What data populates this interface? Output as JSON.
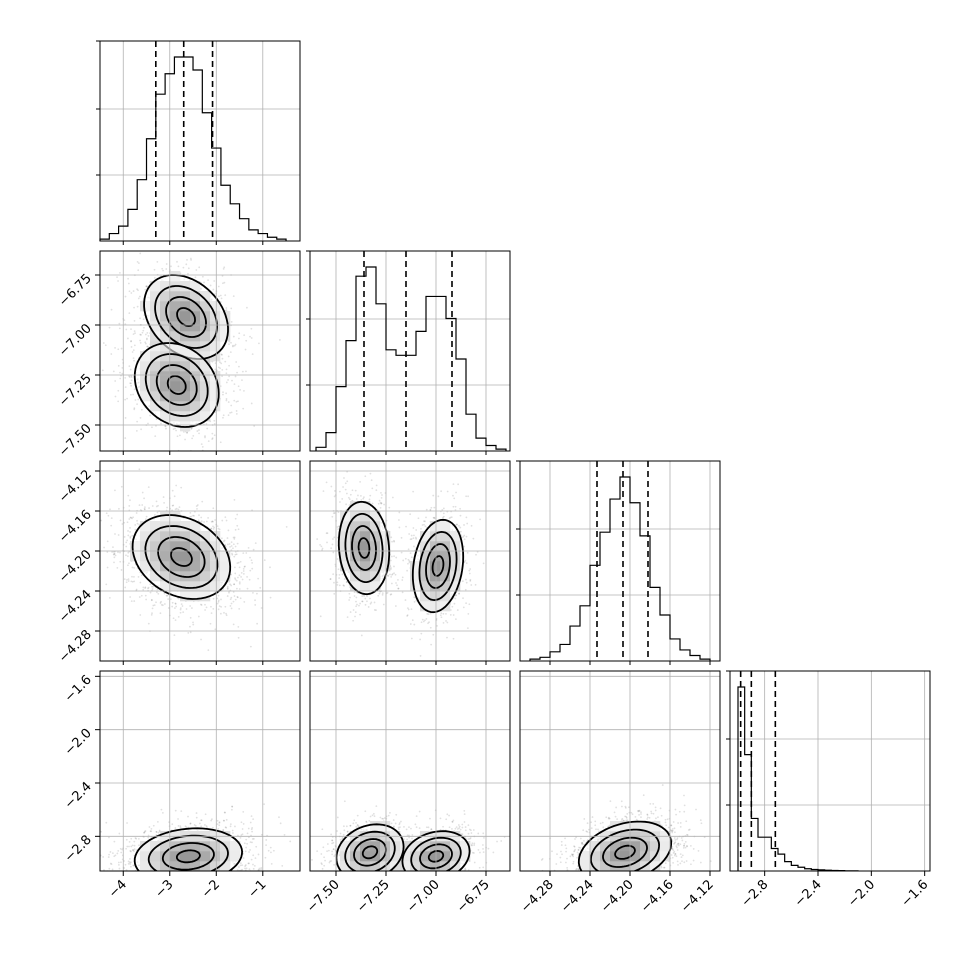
{
  "chart_data": {
    "type": "corner",
    "grid": true,
    "parameters": [
      {
        "range": [
          -4.5,
          -0.2
        ],
        "ticks": [
          -4,
          -3,
          -2,
          -1
        ],
        "tick_labels": [
          "−4",
          "−3",
          "−2",
          "−1"
        ]
      },
      {
        "range": [
          -7.63,
          -6.63
        ],
        "ticks": [
          -7.5,
          -7.25,
          -7.0,
          -6.75
        ],
        "tick_labels": [
          "−7.50",
          "−7.25",
          "−7.00",
          "−6.75"
        ]
      },
      {
        "range": [
          -4.31,
          -4.11
        ],
        "ticks": [
          -4.28,
          -4.24,
          -4.2,
          -4.16,
          -4.12
        ],
        "tick_labels": [
          "−4.28",
          "−4.24",
          "−4.20",
          "−4.16",
          "−4.12"
        ]
      },
      {
        "range": [
          -3.06,
          -1.56
        ],
        "ticks": [
          -2.8,
          -2.4,
          -2.0,
          -1.6
        ],
        "tick_labels": [
          "−2.8",
          "−2.4",
          "−2.0",
          "−1.6"
        ]
      }
    ],
    "histograms": [
      {
        "param": 0,
        "quantiles": [
          -3.3,
          -2.7,
          -2.08
        ],
        "edges": [
          -4.5,
          -4.3,
          -4.1,
          -3.9,
          -3.7,
          -3.5,
          -3.3,
          -3.1,
          -2.9,
          -2.7,
          -2.5,
          -2.3,
          -2.1,
          -1.9,
          -1.7,
          -1.5,
          -1.3,
          -1.1,
          -0.9,
          -0.7,
          -0.5
        ],
        "counts": [
          0.01,
          0.04,
          0.08,
          0.17,
          0.33,
          0.55,
          0.79,
          0.9,
          0.99,
          0.99,
          0.92,
          0.69,
          0.5,
          0.3,
          0.2,
          0.12,
          0.06,
          0.04,
          0.02,
          0.01
        ]
      },
      {
        "param": 1,
        "quantiles": [
          -7.36,
          -7.15,
          -6.92
        ],
        "edges": [
          -7.6,
          -7.55,
          -7.5,
          -7.45,
          -7.4,
          -7.35,
          -7.3,
          -7.25,
          -7.2,
          -7.15,
          -7.1,
          -7.05,
          -7.0,
          -6.95,
          -6.9,
          -6.85,
          -6.8,
          -6.75,
          -6.7,
          -6.65
        ],
        "counts": [
          0.02,
          0.1,
          0.35,
          0.6,
          0.95,
          1.0,
          0.8,
          0.55,
          0.52,
          0.52,
          0.65,
          0.84,
          0.84,
          0.72,
          0.5,
          0.2,
          0.07,
          0.03,
          0.01
        ]
      },
      {
        "param": 2,
        "quantiles": [
          -4.233,
          -4.207,
          -4.182
        ],
        "edges": [
          -4.3,
          -4.29,
          -4.28,
          -4.27,
          -4.26,
          -4.25,
          -4.24,
          -4.23,
          -4.22,
          -4.21,
          -4.2,
          -4.19,
          -4.18,
          -4.17,
          -4.16,
          -4.15,
          -4.14,
          -4.13,
          -4.12
        ],
        "counts": [
          0.01,
          0.02,
          0.05,
          0.09,
          0.19,
          0.3,
          0.52,
          0.7,
          0.88,
          1.0,
          0.86,
          0.68,
          0.4,
          0.25,
          0.12,
          0.06,
          0.03,
          0.01
        ]
      },
      {
        "param": 3,
        "quantiles": [
          -2.98,
          -2.9,
          -2.72
        ],
        "edges": [
          -3.0,
          -2.95,
          -2.9,
          -2.85,
          -2.8,
          -2.75,
          -2.7,
          -2.65,
          -2.6,
          -2.55,
          -2.5,
          -2.45,
          -2.4,
          -2.35,
          -2.3,
          -2.25,
          -2.2,
          -2.15,
          -2.1
        ],
        "counts": [
          0.98,
          0.62,
          0.28,
          0.18,
          0.18,
          0.12,
          0.09,
          0.05,
          0.03,
          0.02,
          0.012,
          0.008,
          0.006,
          0.004,
          0.003,
          0.002,
          0.001,
          0.001
        ]
      }
    ],
    "densities": [
      {
        "x": 0,
        "y": 1,
        "modes": [
          {
            "cx": -2.65,
            "cy": -6.96,
            "sx": 0.43,
            "sy": 0.1,
            "rho": -0.3,
            "w": 1
          },
          {
            "cx": -2.85,
            "cy": -7.3,
            "sx": 0.43,
            "sy": 0.1,
            "rho": -0.2,
            "w": 1
          }
        ]
      },
      {
        "x": 0,
        "y": 2,
        "modes": [
          {
            "cx": -2.75,
            "cy": -4.206,
            "sx": 0.5,
            "sy": 0.02,
            "rho": -0.25,
            "w": 1
          }
        ]
      },
      {
        "x": 1,
        "y": 2,
        "modes": [
          {
            "cx": -7.36,
            "cy": -4.197,
            "sx": 0.06,
            "sy": 0.022,
            "rho": -0.1,
            "w": 1
          },
          {
            "cx": -6.99,
            "cy": -4.215,
            "sx": 0.06,
            "sy": 0.022,
            "rho": 0.2,
            "w": 1
          }
        ]
      },
      {
        "x": 0,
        "y": 3,
        "modes": [
          {
            "cx": -2.6,
            "cy": -2.95,
            "sx": 0.55,
            "sy": 0.1,
            "rho": 0.15,
            "w": 1
          }
        ]
      },
      {
        "x": 1,
        "y": 3,
        "modes": [
          {
            "cx": -7.33,
            "cy": -2.92,
            "sx": 0.08,
            "sy": 0.1,
            "rho": 0.2,
            "w": 1
          },
          {
            "cx": -7.0,
            "cy": -2.95,
            "sx": 0.08,
            "sy": 0.09,
            "rho": 0.2,
            "w": 1
          }
        ]
      },
      {
        "x": 2,
        "y": 3,
        "modes": [
          {
            "cx": -4.205,
            "cy": -2.92,
            "sx": 0.022,
            "sy": 0.11,
            "rho": 0.3,
            "w": 1
          }
        ]
      }
    ]
  }
}
